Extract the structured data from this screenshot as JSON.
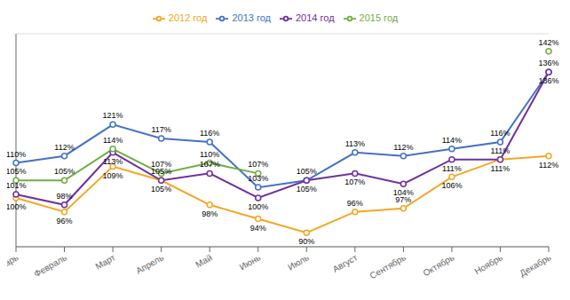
{
  "chart_data": {
    "type": "line",
    "categories": [
      "Январь",
      "Февраль",
      "Март",
      "Апрель",
      "Май",
      "Июнь",
      "Июль",
      "Август",
      "Сентябрь",
      "Октябрь",
      "Ноябрь",
      "Декабрь"
    ],
    "series": [
      {
        "name": "2012 год",
        "color": "#F5A623",
        "marker": "o",
        "values": [
          100,
          96,
          109,
          105,
          98,
          94,
          90,
          96,
          97,
          106,
          111,
          112
        ],
        "value_labels": [
          "100%",
          "96%",
          "109%",
          "105%",
          "98%",
          "94%",
          "90%",
          "96%",
          "97%",
          "106%",
          "111%",
          "112%"
        ]
      },
      {
        "name": "2013 год",
        "color": "#4472C4",
        "marker": "o",
        "values": [
          110,
          112,
          121,
          117,
          116,
          103,
          105,
          113,
          112,
          114,
          116,
          136
        ],
        "value_labels": [
          "110%",
          "112%",
          "121%",
          "117%",
          "116%",
          "103%",
          "105%",
          "113%",
          "112%",
          "114%",
          "116%",
          "136%"
        ]
      },
      {
        "name": "2014 год",
        "color": "#7030A0",
        "marker": "o",
        "values": [
          101,
          98,
          113,
          105,
          107,
          100,
          105,
          107,
          104,
          111,
          111,
          136
        ],
        "value_labels": [
          "101%",
          "98%",
          "113%",
          "105%",
          "107%",
          "100%",
          "105%",
          "107%",
          "104%",
          "111%",
          "111%",
          "136%"
        ]
      },
      {
        "name": "2015 год",
        "color": "#70AD47",
        "marker": "o",
        "values": [
          105,
          105,
          114,
          107,
          110,
          107,
          null,
          null,
          null,
          null,
          null,
          142
        ],
        "value_labels": [
          "105%",
          "105%",
          "114%",
          "107%",
          "110%",
          "107%",
          null,
          null,
          null,
          null,
          null,
          "142%"
        ]
      }
    ],
    "ylim": [
      86,
      147
    ],
    "yticks": [
      90,
      100,
      110,
      120,
      130,
      140
    ],
    "grid": true,
    "legend": "top",
    "data_labels": true,
    "tick_labels": "x"
  }
}
